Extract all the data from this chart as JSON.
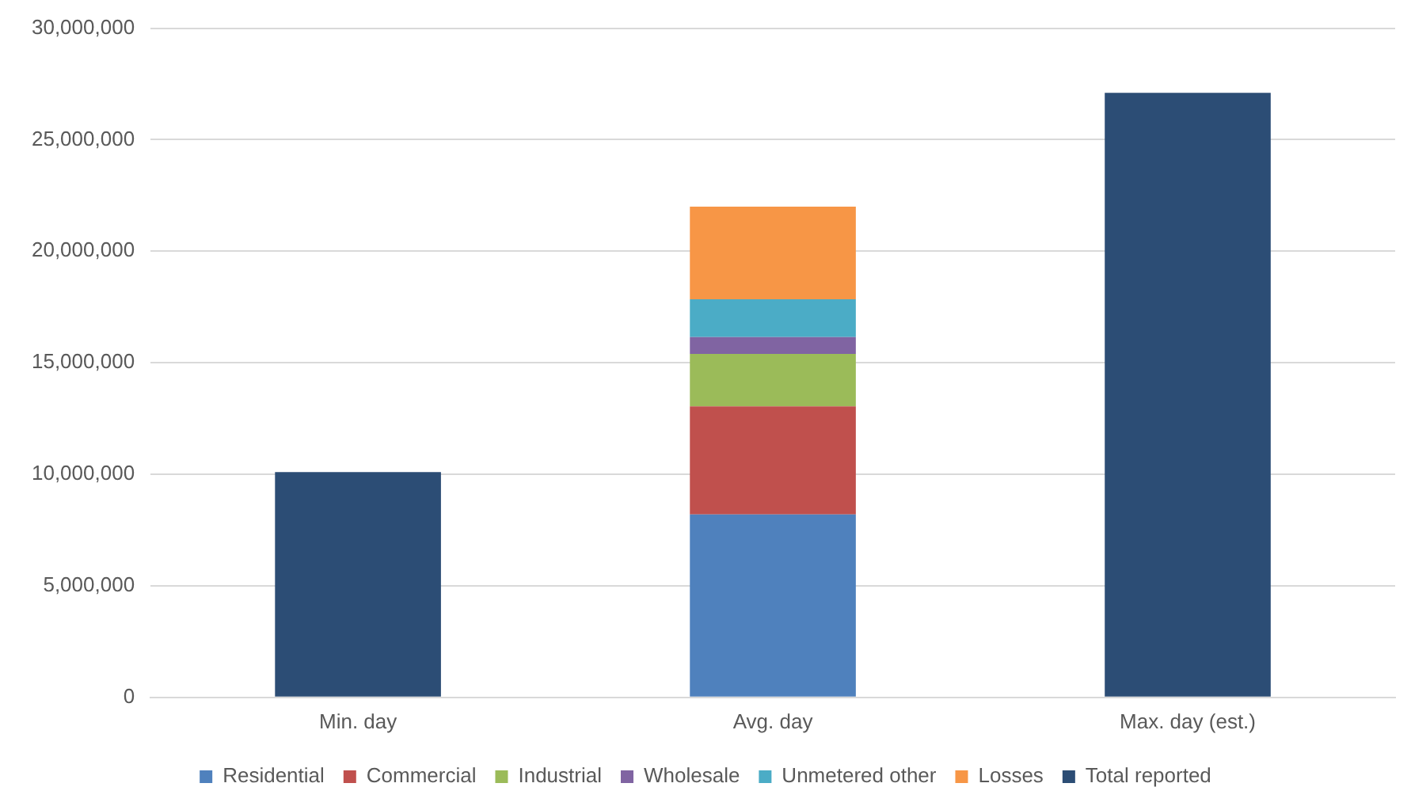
{
  "chart_data": {
    "type": "bar",
    "stacked": true,
    "categories": [
      "Min. day",
      "Avg. day",
      "Max. day (est.)"
    ],
    "series": [
      {
        "name": "Residential",
        "color": "#4f81bd",
        "values": [
          null,
          8200000,
          null
        ]
      },
      {
        "name": "Commercial",
        "color": "#c0504d",
        "values": [
          null,
          4850000,
          null
        ]
      },
      {
        "name": "Industrial",
        "color": "#9bbb59",
        "values": [
          null,
          2350000,
          null
        ]
      },
      {
        "name": "Wholesale",
        "color": "#8064a2",
        "values": [
          null,
          750000,
          null
        ]
      },
      {
        "name": "Unmetered other",
        "color": "#4bacc6",
        "values": [
          null,
          1700000,
          null
        ]
      },
      {
        "name": "Losses",
        "color": "#f79646",
        "values": [
          null,
          4150000,
          null
        ]
      },
      {
        "name": "Total reported",
        "color": "#2c4d75",
        "values": [
          10100000,
          null,
          27100000
        ]
      }
    ],
    "ylim": [
      0,
      30000000
    ],
    "yticks": [
      0,
      {
        "value": 5000000,
        "label": "5,000,000"
      },
      {
        "value": 10000000,
        "label": "10,000,000"
      },
      {
        "value": 15000000,
        "label": "15,000,000"
      },
      {
        "value": 20000000,
        "label": "20,000,000"
      },
      {
        "value": 25000000,
        "label": "25,000,000"
      },
      {
        "value": 30000000,
        "label": "30,000,000"
      }
    ],
    "grid": "y",
    "legend": "bottom"
  }
}
